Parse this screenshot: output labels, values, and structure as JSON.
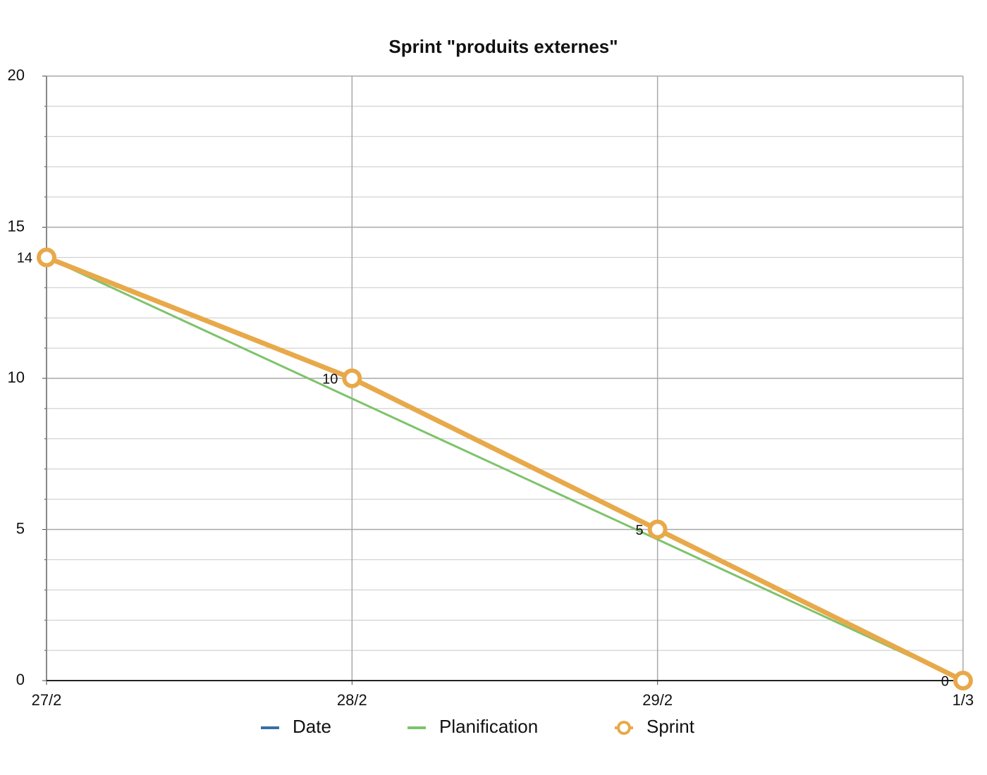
{
  "chart_data": {
    "type": "line",
    "title": "Sprint \"produits externes\"",
    "categories": [
      "27/2",
      "28/2",
      "29/2",
      "1/3"
    ],
    "series": [
      {
        "name": "Date",
        "color": "#3a6ea5",
        "values": [
          null,
          null,
          null,
          null
        ]
      },
      {
        "name": "Planification",
        "color": "#7dc36b",
        "values": [
          14,
          9.33,
          4.67,
          0
        ]
      },
      {
        "name": "Sprint",
        "color": "#e8a94a",
        "values": [
          14,
          10,
          5,
          0
        ],
        "markers": true,
        "data_labels": true
      }
    ],
    "ylim": [
      0,
      20
    ],
    "yticks": [
      0,
      5,
      10,
      15,
      20
    ],
    "minor_yticks": [
      1,
      2,
      3,
      4,
      6,
      7,
      8,
      9,
      11,
      12,
      13,
      14,
      16,
      17,
      18,
      19
    ],
    "grid": true,
    "legend": "bottom"
  }
}
